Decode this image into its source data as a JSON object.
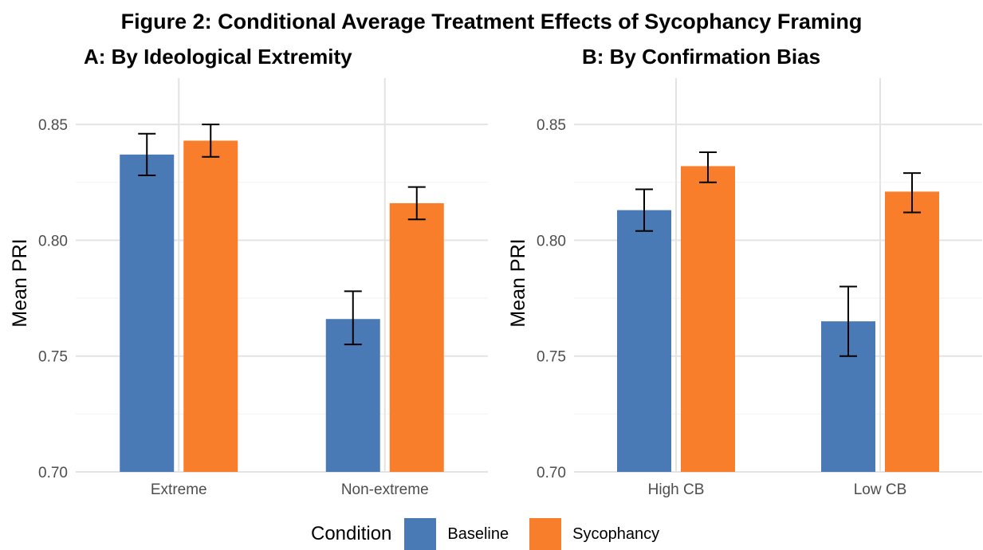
{
  "figure_title": "Figure 2: Conditional Average Treatment Effects of Sycophancy Framing",
  "colors": {
    "baseline": "#4a7ab5",
    "sycophancy": "#f97e2b"
  },
  "legend": {
    "title": "Condition",
    "items": [
      "Baseline",
      "Sycophancy"
    ]
  },
  "chart_data": [
    {
      "type": "bar",
      "title": "A: By Ideological Extremity",
      "xlabel": "",
      "ylabel": "Mean PRI",
      "ylim": [
        0.7,
        0.87
      ],
      "yticks": [
        "0.70",
        "0.75",
        "0.80",
        "0.85"
      ],
      "categories": [
        "Extreme",
        "Non-extreme"
      ],
      "series": [
        {
          "name": "Baseline",
          "values": [
            0.837,
            0.766
          ],
          "err_low": [
            0.828,
            0.755
          ],
          "err_high": [
            0.846,
            0.778
          ]
        },
        {
          "name": "Sycophancy",
          "values": [
            0.843,
            0.816
          ],
          "err_low": [
            0.836,
            0.809
          ],
          "err_high": [
            0.85,
            0.823
          ]
        }
      ],
      "grid": true
    },
    {
      "type": "bar",
      "title": "B: By Confirmation Bias",
      "xlabel": "",
      "ylabel": "Mean PRI",
      "ylim": [
        0.7,
        0.87
      ],
      "yticks": [
        "0.70",
        "0.75",
        "0.80",
        "0.85"
      ],
      "categories": [
        "High CB",
        "Low CB"
      ],
      "series": [
        {
          "name": "Baseline",
          "values": [
            0.813,
            0.765
          ],
          "err_low": [
            0.804,
            0.75
          ],
          "err_high": [
            0.822,
            0.78
          ]
        },
        {
          "name": "Sycophancy",
          "values": [
            0.832,
            0.821
          ],
          "err_low": [
            0.825,
            0.812
          ],
          "err_high": [
            0.838,
            0.829
          ]
        }
      ],
      "grid": true
    }
  ]
}
